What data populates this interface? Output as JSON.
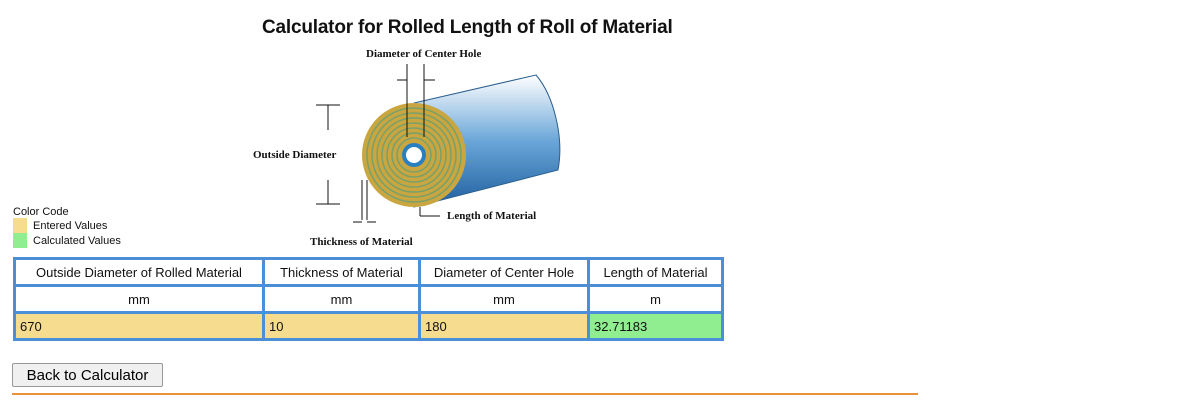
{
  "title": "Calculator for Rolled Length of Roll of Material",
  "diagram": {
    "center_hole_label": "Diameter of Center Hole",
    "outside_diameter_label": "Outside Diameter",
    "length_label": "Length of Material",
    "thickness_label": "Thickness of Material"
  },
  "legend": {
    "title": "Color Code",
    "items": [
      {
        "label": "Entered Values",
        "color": "#f5dc8e"
      },
      {
        "label": "Calculated Values",
        "color": "#90ee90"
      }
    ]
  },
  "table": {
    "headers": [
      "Outside Diameter of Rolled Material",
      "Thickness of Material",
      "Diameter of Center Hole",
      "Length of Material"
    ],
    "units": [
      "mm",
      "mm",
      "mm",
      "m"
    ],
    "values": [
      "670",
      "10",
      "180",
      "32.71183"
    ]
  },
  "back_button": "Back to Calculator",
  "colors": {
    "entered": "#f5dc8e",
    "calculated": "#90ee90",
    "table_border": "#4a8fd8",
    "rule": "#e8903a"
  }
}
